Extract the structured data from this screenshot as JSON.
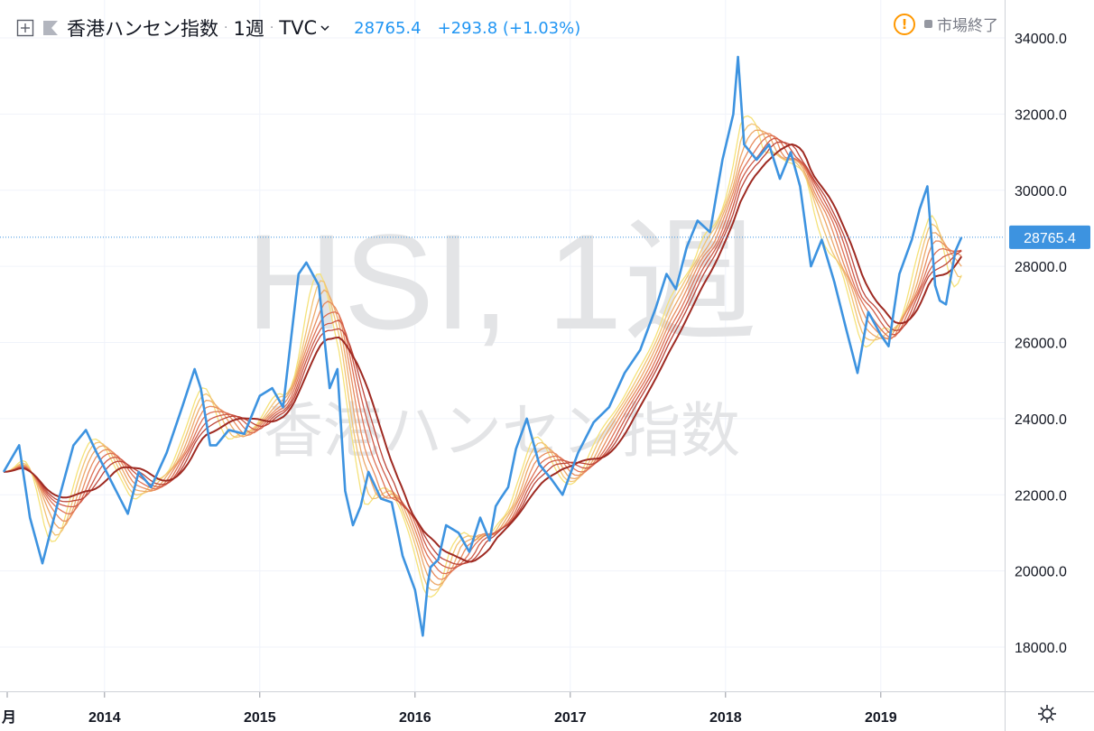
{
  "header": {
    "symbol_name": "香港ハンセン指数",
    "interval": "1週",
    "source": "TVC",
    "last_price": "28765.4",
    "change": "+293.8 (+1.03%)"
  },
  "status": {
    "market_status": "市場終了"
  },
  "watermark": {
    "symbol": "HSI, 1週",
    "name": "香港ハンセン指数"
  },
  "price_axis": {
    "labels": [
      "34000.0",
      "32000.0",
      "30000.0",
      "28000.0",
      "26000.0",
      "24000.0",
      "22000.0",
      "20000.0",
      "18000.0"
    ],
    "current_label": "28765.4"
  },
  "time_axis": {
    "labels": [
      "月",
      "2014",
      "2015",
      "2016",
      "2017",
      "2018",
      "2019"
    ]
  },
  "colors": {
    "price_line": "#3d93e0",
    "ribbon": [
      "#f5e27a",
      "#f2c373",
      "#eda86a",
      "#e88c5f",
      "#de7155",
      "#cf5a47",
      "#bd4539",
      "#9e2a22"
    ],
    "current_line": "#3d93e0"
  },
  "icons": {
    "add": "plus-square-icon",
    "flag": "flag-icon",
    "dropdown": "chevron-down-icon",
    "warning": "exclamation-circle-icon",
    "settings": "gear-icon"
  },
  "chart_data": {
    "type": "line",
    "x_unit": "year",
    "ylim": [
      17000,
      35000
    ],
    "series": [
      {
        "name": "香港ハンセン指数",
        "x": [
          2013.35,
          2013.45,
          2013.52,
          2013.6,
          2013.7,
          2013.8,
          2013.88,
          2013.95,
          2014.05,
          2014.15,
          2014.22,
          2014.3,
          2014.4,
          2014.5,
          2014.58,
          2014.62,
          2014.68,
          2014.72,
          2014.8,
          2014.9,
          2015.0,
          2015.08,
          2015.15,
          2015.25,
          2015.3,
          2015.38,
          2015.45,
          2015.5,
          2015.55,
          2015.6,
          2015.65,
          2015.7,
          2015.78,
          2015.85,
          2015.92,
          2016.0,
          2016.05,
          2016.08,
          2016.1,
          2016.15,
          2016.2,
          2016.28,
          2016.35,
          2016.42,
          2016.48,
          2016.52,
          2016.55,
          2016.6,
          2016.65,
          2016.72,
          2016.8,
          2016.88,
          2016.95,
          2017.05,
          2017.15,
          2017.25,
          2017.35,
          2017.45,
          2017.55,
          2017.62,
          2017.68,
          2017.75,
          2017.82,
          2017.9,
          2017.98,
          2018.05,
          2018.08,
          2018.12,
          2018.2,
          2018.28,
          2018.35,
          2018.42,
          2018.48,
          2018.55,
          2018.62,
          2018.7,
          2018.78,
          2018.85,
          2018.92,
          2019.0,
          2019.05,
          2019.12,
          2019.2,
          2019.25,
          2019.3,
          2019.35,
          2019.38,
          2019.42,
          2019.48,
          2019.52
        ],
        "values": [
          22600,
          23300,
          21400,
          20200,
          21800,
          23300,
          23700,
          23100,
          22300,
          21500,
          22600,
          22200,
          23100,
          24300,
          25300,
          24800,
          23300,
          23300,
          23700,
          23600,
          24600,
          24800,
          24300,
          27800,
          28100,
          27500,
          24800,
          25300,
          22100,
          21200,
          21700,
          22600,
          21900,
          21800,
          20400,
          19500,
          18300,
          19600,
          20100,
          20300,
          21200,
          21000,
          20500,
          21400,
          20800,
          21700,
          21900,
          22200,
          23200,
          24000,
          22800,
          22400,
          22000,
          23100,
          23900,
          24300,
          25200,
          25800,
          26900,
          27800,
          27400,
          28500,
          29200,
          28900,
          30800,
          32000,
          33500,
          31200,
          30800,
          31200,
          30300,
          31000,
          30100,
          28000,
          28700,
          27600,
          26300,
          25200,
          26800,
          26200,
          25900,
          27800,
          28700,
          29500,
          30100,
          27500,
          27100,
          27000,
          28400,
          28765
        ]
      }
    ],
    "ribbon_offsets": [
      1.35,
      1.22,
      1.1,
      0.98,
      0.86,
      0.74,
      0.62,
      0.5
    ]
  }
}
